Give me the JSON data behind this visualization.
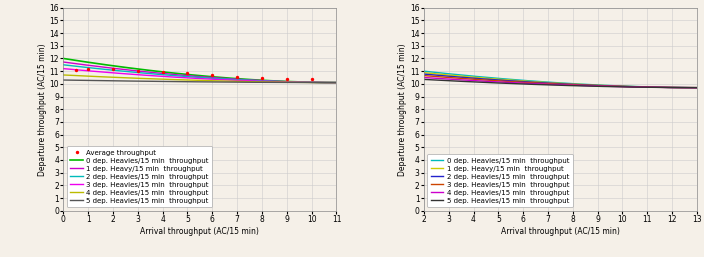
{
  "left": {
    "xlim": [
      0,
      11
    ],
    "ylim": [
      0,
      16
    ],
    "xticks": [
      0,
      1,
      2,
      3,
      4,
      5,
      6,
      7,
      8,
      9,
      10,
      11
    ],
    "yticks": [
      0,
      1,
      2,
      3,
      4,
      5,
      6,
      7,
      8,
      9,
      10,
      11,
      12,
      13,
      14,
      15,
      16
    ],
    "xlabel": "Arrival throughput (AC/15 min)",
    "ylabel": "Departure throughput (AC/15 min)",
    "curves": [
      {
        "label": "0 dep. Heavies/15 min  throughput",
        "color": "#00bb00",
        "y0": 12.0,
        "y1": 10.1,
        "lw": 1.2
      },
      {
        "label": "1 dep. Heavy/15 min  throughput",
        "color": "#cc00cc",
        "y0": 11.72,
        "y1": 10.1,
        "lw": 1.0
      },
      {
        "label": "2 dep. Heavies/15 min  throughput",
        "color": "#00bbbb",
        "y0": 11.5,
        "y1": 10.1,
        "lw": 1.0
      },
      {
        "label": "3 dep. Heavies/15 min  throughput",
        "color": "#ee00ee",
        "y0": 11.2,
        "y1": 10.1,
        "lw": 1.0
      },
      {
        "label": "4 dep. Heavies/15 min  throughput",
        "color": "#bbbb00",
        "y0": 10.7,
        "y1": 10.1,
        "lw": 1.0
      },
      {
        "label": "5 dep. Heavies/15 min  throughput",
        "color": "#555555",
        "y0": 10.3,
        "y1": 10.1,
        "lw": 1.0
      }
    ],
    "avg_x": [
      0.5,
      1.0,
      2.0,
      3.0,
      4.0,
      5.0,
      6.0,
      7.0,
      8.0,
      9.0,
      10.0
    ],
    "avg_y": [
      11.1,
      11.2,
      11.15,
      11.05,
      10.95,
      10.82,
      10.68,
      10.57,
      10.48,
      10.42,
      10.35
    ],
    "curve_exp": 1.8
  },
  "right": {
    "xlim": [
      2,
      13
    ],
    "ylim": [
      0,
      16
    ],
    "xticks": [
      2,
      3,
      4,
      5,
      6,
      7,
      8,
      9,
      10,
      11,
      12,
      13
    ],
    "yticks": [
      0,
      1,
      2,
      3,
      4,
      5,
      6,
      7,
      8,
      9,
      10,
      11,
      12,
      13,
      14,
      15,
      16
    ],
    "xlabel": "Arrival throughput (AC/15 min)",
    "ylabel": "Departure throughput (AC/15 min)",
    "curves": [
      {
        "label": "0 dep. Heavies/15 min  throughput",
        "color": "#00bbbb",
        "y0": 11.0,
        "y1": 9.7,
        "lw": 1.0
      },
      {
        "label": "1 dep. Heavy/15 min  throughput",
        "color": "#cccc00",
        "y0": 10.88,
        "y1": 9.7,
        "lw": 1.0
      },
      {
        "label": "2 dep. Heavies/15 min  throughput",
        "color": "#2222cc",
        "y0": 10.77,
        "y1": 9.7,
        "lw": 1.0
      },
      {
        "label": "3 dep. Heavies/15 min  throughput",
        "color": "#cc4400",
        "y0": 10.65,
        "y1": 9.7,
        "lw": 1.0
      },
      {
        "label": "4 dep. Heavies/15 min  throughput",
        "color": "#cc00cc",
        "y0": 10.5,
        "y1": 9.7,
        "lw": 1.0
      },
      {
        "label": "5 dep. Heavies/15 min  throughput",
        "color": "#333333",
        "y0": 10.35,
        "y1": 9.7,
        "lw": 1.0
      }
    ],
    "curve_exp": 1.8
  },
  "bg_color": "#f5f0e8",
  "grid_color": "#cccccc",
  "tick_fontsize": 5.5,
  "label_fontsize": 5.5,
  "legend_fontsize": 5.0
}
